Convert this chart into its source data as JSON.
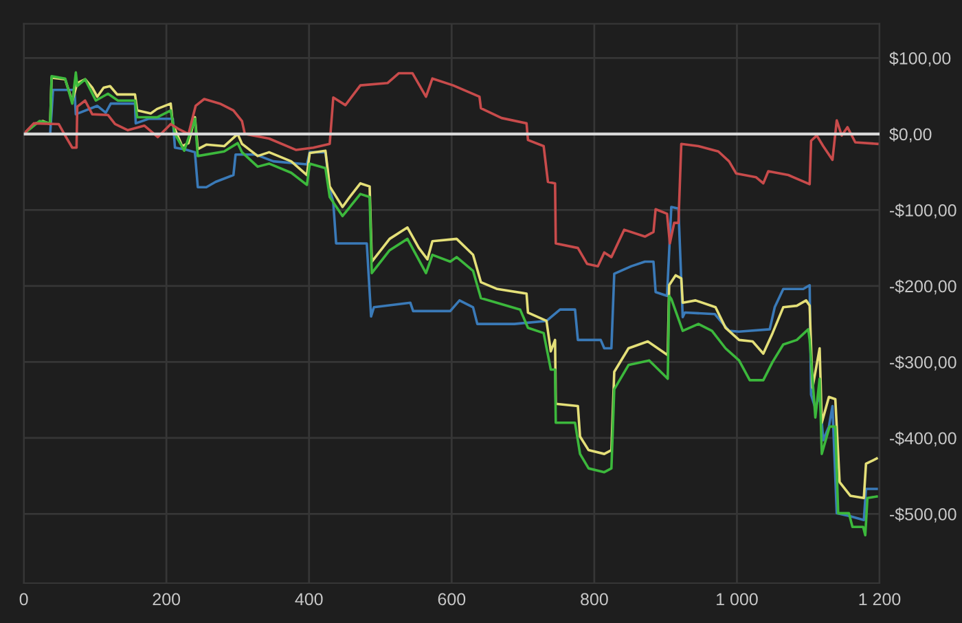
{
  "chart_data": {
    "type": "line",
    "xlim": [
      0,
      1200
    ],
    "ylim": [
      -591,
      145
    ],
    "xticks": [
      0,
      200,
      400,
      600,
      800,
      {
        "value": 1000,
        "label": "1 000"
      },
      {
        "value": 1200,
        "label": "1 200"
      }
    ],
    "yticks": [
      {
        "value": 100,
        "label": "$100,00"
      },
      {
        "value": 0,
        "label": "$0,00"
      },
      {
        "value": -100,
        "label": "-$100,00"
      },
      {
        "value": -200,
        "label": "-$200,00"
      },
      {
        "value": -300,
        "label": "-$300,00"
      },
      {
        "value": -400,
        "label": "-$400,00"
      },
      {
        "value": -500,
        "label": "-$500,00"
      }
    ],
    "grid": true,
    "legend": false,
    "marker": "none",
    "line_style": "solid",
    "ref_lines": [
      {
        "axis": "y",
        "value": 0,
        "label": null,
        "color": "#d8d8d8"
      }
    ],
    "series": [
      {
        "color": "#3a7ab8",
        "x": [
          0,
          37,
          41,
          71,
          73,
          103,
          115,
          122,
          156,
          157,
          175,
          209,
          212,
          225,
          240,
          244,
          256,
          269,
          294,
          297,
          325,
          350,
          397,
          401,
          423,
          429,
          434,
          438,
          481,
          487,
          491,
          542,
          546,
          598,
          611,
          630,
          636,
          688,
          733,
          752,
          773,
          777,
          809,
          814,
          824,
          828,
          852,
          871,
          883,
          886,
          902,
          908,
          918,
          924,
          927,
          969,
          989,
          1003,
          1046,
          1053,
          1065,
          1093,
          1102,
          1104,
          1110,
          1116,
          1121,
          1129,
          1134,
          1140,
          1159,
          1178,
          1181,
          1196
        ],
        "values": [
          0,
          0,
          58,
          58,
          26,
          37,
          28,
          40,
          40,
          14,
          20,
          20,
          -18,
          -20,
          -24,
          -70,
          -70,
          -63,
          -54,
          -27,
          -27,
          -36,
          -40,
          -24,
          -24,
          -72,
          -90,
          -144,
          -144,
          -240,
          -228,
          -222,
          -233,
          -233,
          -219,
          -228,
          -250,
          -250,
          -246,
          -231,
          -231,
          -271,
          -271,
          -282,
          -282,
          -184,
          -174,
          -168,
          -168,
          -208,
          -213,
          -96,
          -98,
          -241,
          -235,
          -237,
          -259,
          -260,
          -257,
          -228,
          -204,
          -204,
          -199,
          -343,
          -361,
          -343,
          -403,
          -385,
          -358,
          -499,
          -503,
          -508,
          -467,
          -467
        ]
      },
      {
        "color": "#e4df78",
        "x": [
          0,
          14,
          27,
          37,
          39,
          58,
          68,
          75,
          86,
          96,
          103,
          112,
          121,
          131,
          156,
          159,
          178,
          187,
          206,
          209,
          222,
          231,
          240,
          244,
          256,
          281,
          300,
          306,
          328,
          344,
          375,
          397,
          401,
          423,
          429,
          447,
          457,
          472,
          485,
          488,
          513,
          538,
          554,
          566,
          573,
          607,
          630,
          641,
          664,
          705,
          707,
          733,
          739,
          745,
          746,
          777,
          780,
          792,
          814,
          824,
          828,
          848,
          875,
          903,
          905,
          914,
          922,
          924,
          942,
          970,
          984,
          1003,
          1022,
          1037,
          1050,
          1065,
          1084,
          1097,
          1102,
          1106,
          1116,
          1119,
          1129,
          1138,
          1144,
          1159,
          1178,
          1181,
          1196
        ],
        "values": [
          0,
          13,
          17,
          13,
          74,
          72,
          43,
          67,
          72,
          61,
          49,
          61,
          63,
          52,
          52,
          31,
          27,
          33,
          40,
          13,
          -16,
          -12,
          22,
          -20,
          -14,
          -16,
          0,
          -13,
          -29,
          -24,
          -36,
          -54,
          -25,
          -22,
          -69,
          -96,
          -83,
          -65,
          -69,
          -168,
          -138,
          -123,
          -150,
          -165,
          -141,
          -138,
          -159,
          -195,
          -204,
          -210,
          -235,
          -246,
          -286,
          -271,
          -355,
          -358,
          -398,
          -416,
          -421,
          -416,
          -313,
          -282,
          -273,
          -291,
          -199,
          -186,
          -190,
          -222,
          -219,
          -228,
          -255,
          -271,
          -273,
          -289,
          -262,
          -228,
          -226,
          -219,
          -226,
          -334,
          -282,
          -380,
          -346,
          -349,
          -458,
          -476,
          -479,
          -434,
          -427
        ]
      },
      {
        "color": "#3cb83c",
        "x": [
          0,
          22,
          37,
          39,
          58,
          68,
          73,
          75,
          86,
          101,
          118,
          132,
          156,
          159,
          187,
          206,
          212,
          225,
          240,
          244,
          281,
          300,
          306,
          328,
          344,
          375,
          397,
          401,
          423,
          429,
          447,
          472,
          485,
          488,
          513,
          538,
          564,
          573,
          598,
          607,
          630,
          641,
          696,
          707,
          729,
          739,
          745,
          746,
          773,
          780,
          792,
          814,
          824,
          828,
          848,
          877,
          903,
          905,
          908,
          924,
          946,
          965,
          984,
          1003,
          1018,
          1037,
          1050,
          1065,
          1084,
          1100,
          1102,
          1110,
          1116,
          1119,
          1130,
          1138,
          1142,
          1157,
          1162,
          1177,
          1180,
          1183,
          1196
        ],
        "values": [
          0,
          17,
          14,
          76,
          73,
          40,
          81,
          63,
          72,
          44,
          53,
          44,
          44,
          22,
          22,
          31,
          0,
          -22,
          20,
          -29,
          -23,
          -12,
          -24,
          -43,
          -39,
          -51,
          -67,
          -39,
          -45,
          -83,
          -108,
          -79,
          -83,
          -183,
          -153,
          -138,
          -183,
          -159,
          -168,
          -162,
          -180,
          -216,
          -231,
          -255,
          -262,
          -310,
          -310,
          -380,
          -380,
          -421,
          -440,
          -445,
          -440,
          -336,
          -304,
          -298,
          -322,
          -213,
          -217,
          -259,
          -250,
          -259,
          -282,
          -298,
          -324,
          -324,
          -300,
          -277,
          -271,
          -257,
          -271,
          -373,
          -322,
          -421,
          -385,
          -385,
          -499,
          -499,
          -517,
          -517,
          -528,
          -479,
          -477
        ]
      },
      {
        "color": "#c84b4b",
        "x": [
          0,
          14,
          49,
          58,
          68,
          74,
          75,
          86,
          96,
          118,
          128,
          146,
          169,
          188,
          206,
          218,
          231,
          241,
          253,
          275,
          294,
          306,
          310,
          344,
          382,
          406,
          429,
          434,
          451,
          472,
          510,
          526,
          545,
          564,
          573,
          602,
          639,
          641,
          670,
          705,
          707,
          729,
          735,
          745,
          746,
          777,
          790,
          805,
          814,
          824,
          842,
          871,
          883,
          886,
          902,
          906,
          912,
          918,
          922,
          946,
          974,
          989,
          999,
          1027,
          1037,
          1044,
          1072,
          1102,
          1104,
          1112,
          1121,
          1134,
          1140,
          1147,
          1155,
          1166,
          1197
        ],
        "values": [
          0,
          14,
          13,
          -2,
          -18,
          -18,
          36,
          44,
          26,
          25,
          13,
          5,
          11,
          -4,
          13,
          6,
          0,
          37,
          46,
          40,
          31,
          17,
          0,
          -6,
          -21,
          -18,
          -13,
          48,
          38,
          64,
          67,
          80,
          80,
          49,
          73,
          64,
          49,
          34,
          21,
          14,
          -8,
          -16,
          -63,
          -65,
          -144,
          -150,
          -171,
          -174,
          -156,
          -162,
          -126,
          -135,
          -129,
          -99,
          -105,
          -144,
          -117,
          -117,
          -13,
          -16,
          -23,
          -36,
          -52,
          -57,
          -65,
          -49,
          -54,
          -66,
          -9,
          -2,
          -16,
          -34,
          18,
          -2,
          9,
          -11,
          -13
        ]
      }
    ]
  }
}
